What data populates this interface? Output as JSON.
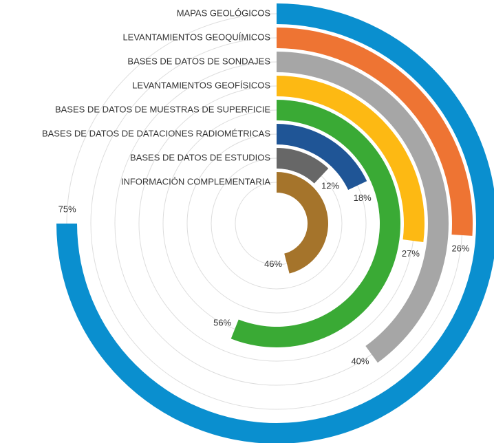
{
  "chart_data": {
    "type": "radial_bar",
    "categories": [
      "MAPAS GEOLÓGICOS",
      "LEVANTAMIENTOS GEOQUÍMICOS",
      "BASES DE DATOS DE SONDAJES",
      "LEVANTAMIENTOS GEOFÍSICOS",
      "BASES DE DATOS DE MUESTRAS DE SUPERFICIE",
      "BASES DE DATOS DE DATACIONES RADIOMÉTRICAS",
      "BASES DE DATOS DE ESTUDIOS",
      "INFORMACIÓN COMPLEMENTARIA"
    ],
    "values": [
      75,
      26,
      40,
      27,
      56,
      18,
      12,
      46
    ],
    "value_labels": [
      "75%",
      "26%",
      "40%",
      "27%",
      "56%",
      "18%",
      "12%",
      "46%"
    ],
    "colors": [
      "#0a8fcf",
      "#ee7433",
      "#a6a6a6",
      "#fdb913",
      "#3aaa35",
      "#1f5596",
      "#676767",
      "#a5742b"
    ]
  }
}
